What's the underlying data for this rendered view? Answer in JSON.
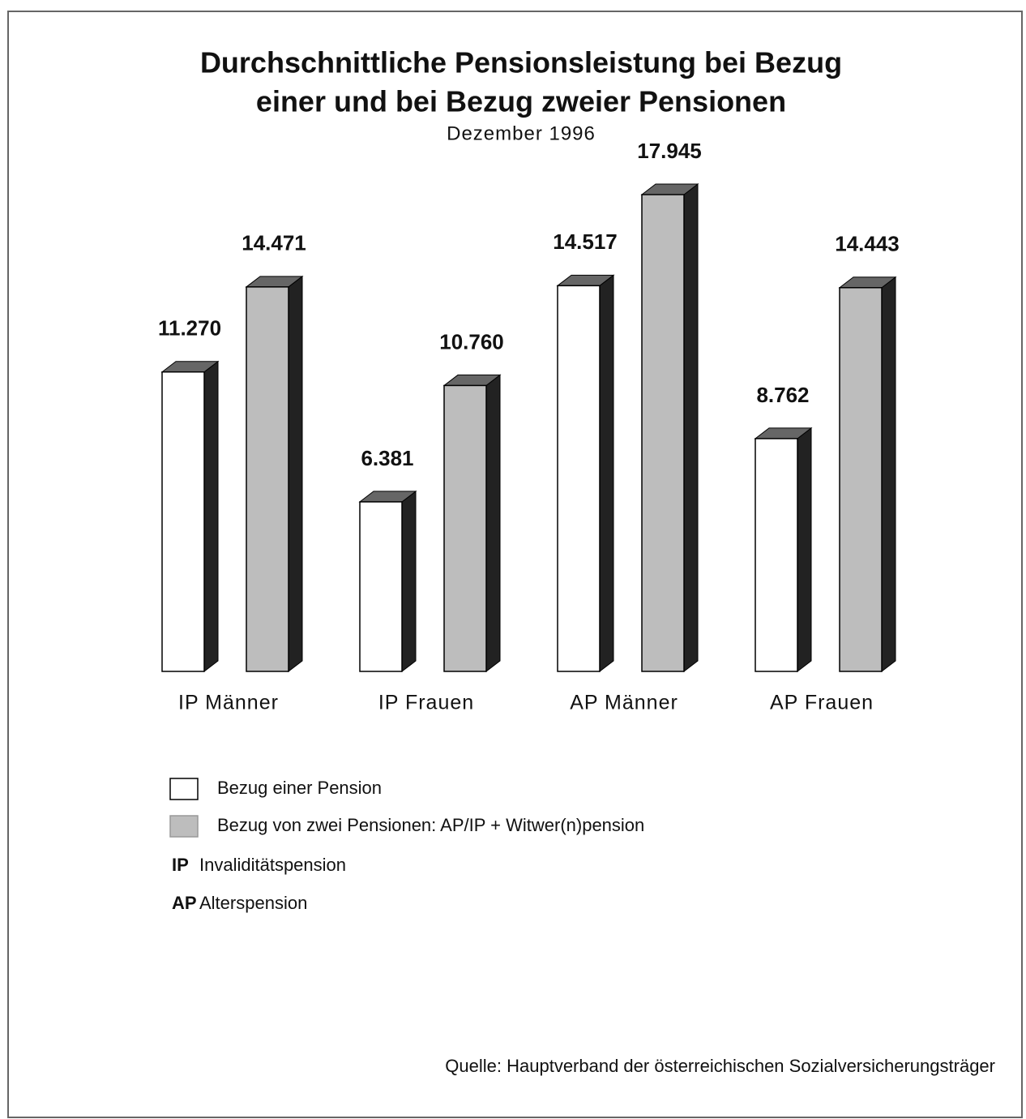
{
  "chart_data": {
    "type": "bar3d",
    "title": [
      "Durchschnittliche Pensionsleistung bei Bezug",
      "einer und bei Bezug zweier Pensionen"
    ],
    "subtitle": "Dezember 1996",
    "categories": [
      "IP Männer",
      "IP Frauen",
      "AP Männer",
      "AP Frauen"
    ],
    "series": [
      {
        "name": "Bezug einer Pension",
        "color": "#ffffff",
        "values": [
          11270,
          6381,
          14517,
          8762
        ],
        "value_labels": [
          "11.270",
          "6.381",
          "14.517",
          "8.762"
        ]
      },
      {
        "name": "Bezug von zwei Pensionen: AP/IP + Witwer(n)pension",
        "color": "#bdbdbd",
        "values": [
          14471,
          10760,
          17945,
          14443
        ],
        "value_labels": [
          "14.471",
          "10.760",
          "17.945",
          "14.443"
        ]
      }
    ],
    "notes": [
      {
        "abbr": "IP",
        "text": "Invaliditätspension"
      },
      {
        "abbr": "AP",
        "text": "Alterspension"
      }
    ],
    "source": "Quelle: Hauptverband der österreichischen Sozialversicherungsträger"
  }
}
